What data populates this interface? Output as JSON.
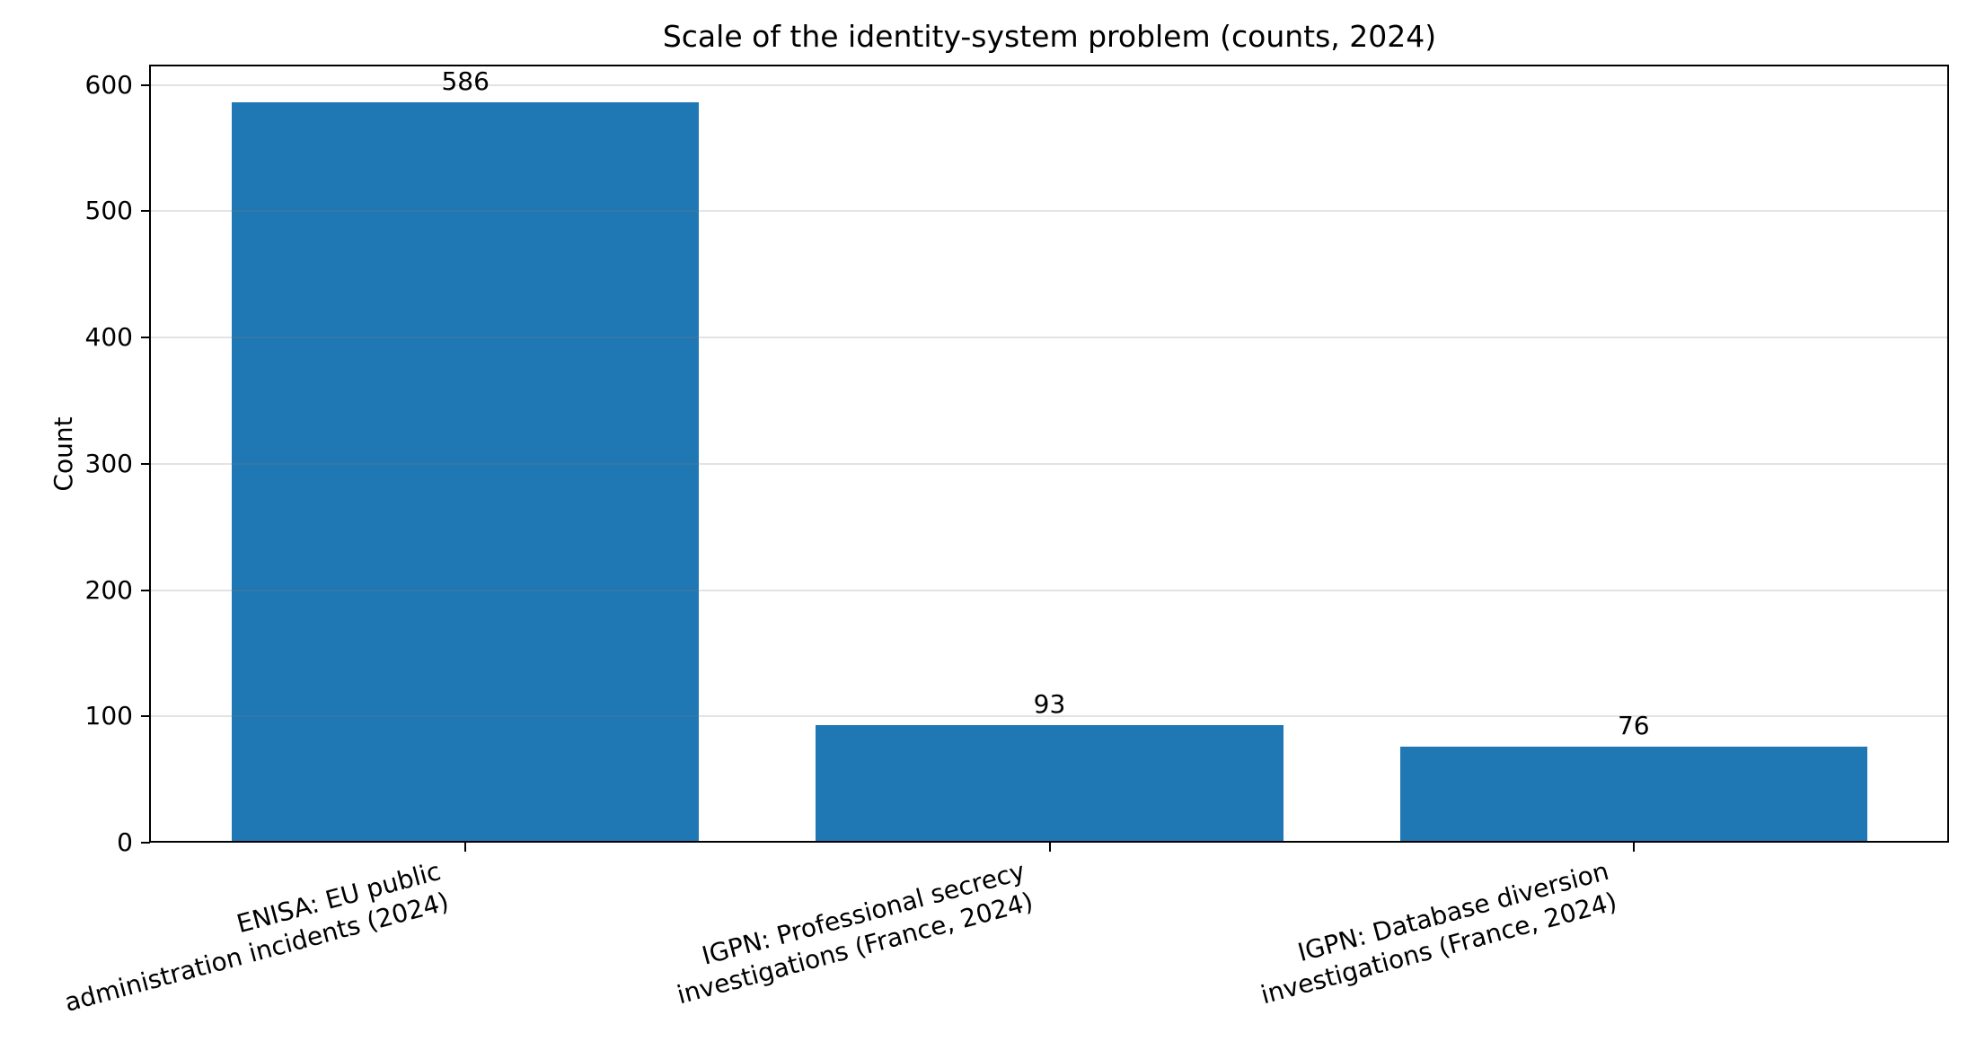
{
  "chart_data": {
    "type": "bar",
    "title": "Scale of the identity-system problem (counts, 2024)",
    "xlabel": "",
    "ylabel": "Count",
    "categories": [
      "ENISA: EU public\nadministration incidents (2024)",
      "IGPN: Professional secrecy\ninvestigations (France, 2024)",
      "IGPN: Database diversion\ninvestigations (France, 2024)"
    ],
    "values": [
      586,
      93,
      76
    ],
    "bar_labels": [
      "586",
      "93",
      "76"
    ],
    "yticks": [
      0,
      100,
      200,
      300,
      400,
      500,
      600
    ],
    "ylim": [
      0,
      615.3
    ],
    "grid": "horizontal",
    "legend": null,
    "colors": {
      "bar": "#1f77b4",
      "text": "#000000",
      "grid": "rgba(128,128,128,0.22)",
      "spine": "#000000",
      "background": "#ffffff"
    }
  }
}
